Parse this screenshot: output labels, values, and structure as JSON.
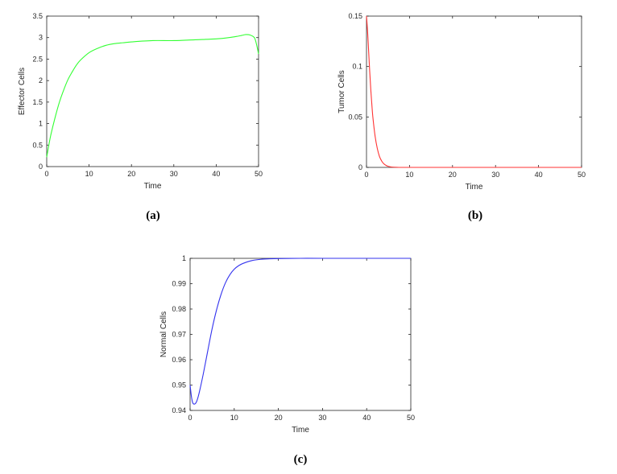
{
  "chart_data": [
    {
      "type": "line",
      "caption": "(a)",
      "xlabel": "Time",
      "ylabel": "Effector Cells",
      "xlim": [
        0,
        50
      ],
      "ylim": [
        0,
        3.5
      ],
      "xticks": [
        0,
        10,
        20,
        30,
        40,
        50
      ],
      "yticks": [
        0,
        0.5,
        1,
        1.5,
        2,
        2.5,
        3,
        3.5
      ],
      "grid": false,
      "color": "#33ff33",
      "series": [
        {
          "x": [
            0,
            0.5,
            1,
            2,
            3,
            4,
            5,
            6,
            7,
            8,
            10,
            12,
            14,
            16,
            18,
            20,
            25,
            30,
            35,
            40,
            43,
            45,
            46,
            47,
            48,
            49,
            49.5,
            50
          ],
          "y": [
            0.22,
            0.5,
            0.75,
            1.15,
            1.5,
            1.78,
            2.02,
            2.2,
            2.36,
            2.48,
            2.65,
            2.75,
            2.82,
            2.86,
            2.88,
            2.9,
            2.93,
            2.93,
            2.95,
            2.97,
            3.0,
            3.03,
            3.05,
            3.07,
            3.06,
            3.0,
            2.85,
            2.62
          ]
        }
      ]
    },
    {
      "type": "line",
      "caption": "(b)",
      "xlabel": "Time",
      "ylabel": "Tumor Cells",
      "xlim": [
        0,
        50
      ],
      "ylim": [
        0,
        0.15
      ],
      "xticks": [
        0,
        10,
        20,
        30,
        40,
        50
      ],
      "yticks": [
        0,
        0.05,
        0.1,
        0.15
      ],
      "grid": false,
      "color": "#ff3333",
      "series": [
        {
          "x": [
            0,
            0.25,
            0.5,
            0.75,
            1,
            1.25,
            1.5,
            2,
            2.5,
            3,
            3.5,
            4,
            4.5,
            5,
            5.5,
            6,
            7,
            8,
            10,
            20,
            30,
            40,
            50
          ],
          "y": [
            0.15,
            0.135,
            0.115,
            0.095,
            0.077,
            0.062,
            0.049,
            0.031,
            0.019,
            0.011,
            0.0065,
            0.0037,
            0.0021,
            0.0011,
            0.0006,
            0.0003,
            0.0001,
            0,
            0,
            0,
            0,
            0,
            0
          ]
        }
      ]
    },
    {
      "type": "line",
      "caption": "(c)",
      "xlabel": "Time",
      "ylabel": "Normal Cells",
      "xlim": [
        0,
        50
      ],
      "ylim": [
        0.94,
        1
      ],
      "xticks": [
        0,
        10,
        20,
        30,
        40,
        50
      ],
      "yticks": [
        0.94,
        0.95,
        0.96,
        0.97,
        0.98,
        0.99,
        1
      ],
      "grid": false,
      "color": "#3333ee",
      "series": [
        {
          "x": [
            0,
            0.3,
            0.6,
            1,
            1.4,
            1.8,
            2.2,
            3,
            4,
            5,
            6,
            7,
            8,
            9,
            10,
            11,
            12,
            14,
            16,
            18,
            20,
            25,
            30,
            40,
            50
          ],
          "y": [
            0.95,
            0.9455,
            0.943,
            0.9425,
            0.9432,
            0.9452,
            0.948,
            0.9545,
            0.9635,
            0.9723,
            0.9797,
            0.9857,
            0.9903,
            0.9935,
            0.9957,
            0.9971,
            0.998,
            0.9991,
            0.9996,
            0.9998,
            0.9999,
            1.0,
            1.0,
            1.0,
            1.0
          ]
        }
      ]
    }
  ]
}
